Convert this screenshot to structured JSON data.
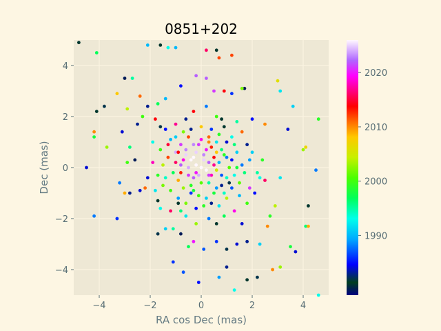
{
  "chart_data": {
    "type": "scatter",
    "title": "0851+202",
    "xlabel": "RA cos Dec (mas)",
    "ylabel": "Dec (mas)",
    "xlim": [
      -5.0,
      5.0
    ],
    "ylim": [
      -5.0,
      5.0
    ],
    "xticks": [
      -4,
      -2,
      0,
      2,
      4
    ],
    "yticks": [
      -4,
      -2,
      0,
      2,
      4
    ],
    "grid": true,
    "colorbar": {
      "label": "",
      "range": [
        1979,
        2026
      ],
      "ticks": [
        1990,
        2000,
        2010,
        2020
      ],
      "colormap": "gist_ncar",
      "stops": [
        {
          "t": 0.0,
          "color": "#000080"
        },
        {
          "t": 0.05,
          "color": "#003f1f"
        },
        {
          "t": 0.12,
          "color": "#0000ff"
        },
        {
          "t": 0.22,
          "color": "#00aaff"
        },
        {
          "t": 0.3,
          "color": "#00ffea"
        },
        {
          "t": 0.38,
          "color": "#00ff5a"
        },
        {
          "t": 0.46,
          "color": "#4cff00"
        },
        {
          "t": 0.54,
          "color": "#c8f000"
        },
        {
          "t": 0.62,
          "color": "#ffc800"
        },
        {
          "t": 0.68,
          "color": "#ff6a00"
        },
        {
          "t": 0.74,
          "color": "#ff0000"
        },
        {
          "t": 0.8,
          "color": "#ff0080"
        },
        {
          "t": 0.86,
          "color": "#ff00ff"
        },
        {
          "t": 0.92,
          "color": "#b066ff"
        },
        {
          "t": 1.0,
          "color": "#fff8ff"
        }
      ]
    },
    "points": [
      {
        "x": -4.8,
        "y": 4.9,
        "year": 1981
      },
      {
        "x": -4.1,
        "y": 4.5,
        "year": 1997
      },
      {
        "x": -3.8,
        "y": 2.4,
        "year": 1982
      },
      {
        "x": -4.1,
        "y": 2.2,
        "year": 1981
      },
      {
        "x": -4.2,
        "y": 1.4,
        "year": 2010
      },
      {
        "x": -4.2,
        "y": 1.2,
        "year": 1998
      },
      {
        "x": -3.7,
        "y": 0.8,
        "year": 2003
      },
      {
        "x": -4.5,
        "y": 0.0,
        "year": 1984
      },
      {
        "x": -4.2,
        "y": -1.9,
        "year": 1988
      },
      {
        "x": -3.3,
        "y": -2.0,
        "year": 1986
      },
      {
        "x": -3.0,
        "y": 3.5,
        "year": 1980
      },
      {
        "x": -2.7,
        "y": 3.5,
        "year": 1995
      },
      {
        "x": -3.3,
        "y": 2.9,
        "year": 2008
      },
      {
        "x": -2.9,
        "y": 2.3,
        "year": 2004
      },
      {
        "x": -2.4,
        "y": 2.8,
        "year": 2011
      },
      {
        "x": -2.1,
        "y": 4.8,
        "year": 1990
      },
      {
        "x": -1.6,
        "y": 4.8,
        "year": 1981
      },
      {
        "x": -1.3,
        "y": 4.7,
        "year": 1993
      },
      {
        "x": -1.0,
        "y": 4.7,
        "year": 1990
      },
      {
        "x": 0.2,
        "y": 4.6,
        "year": 2016
      },
      {
        "x": 0.6,
        "y": 4.6,
        "year": 1981
      },
      {
        "x": 0.7,
        "y": 4.3,
        "year": 2012
      },
      {
        "x": 1.2,
        "y": 4.4,
        "year": 2012
      },
      {
        "x": -3.2,
        "y": -0.6,
        "year": 1988
      },
      {
        "x": -3.0,
        "y": -1.0,
        "year": 2009
      },
      {
        "x": -2.8,
        "y": -1.0,
        "year": 1983
      },
      {
        "x": -2.4,
        "y": -0.9,
        "year": 1984
      },
      {
        "x": -2.2,
        "y": -0.8,
        "year": 2011
      },
      {
        "x": -1.7,
        "y": -2.6,
        "year": 1982
      },
      {
        "x": -1.1,
        "y": -3.7,
        "year": 1986
      },
      {
        "x": -0.7,
        "y": -4.1,
        "year": 1987
      },
      {
        "x": -0.1,
        "y": -4.5,
        "year": 1985
      },
      {
        "x": 0.7,
        "y": -4.3,
        "year": 1989
      },
      {
        "x": 1.0,
        "y": -3.9,
        "year": 1983
      },
      {
        "x": 1.3,
        "y": -4.8,
        "year": 1993
      },
      {
        "x": 1.8,
        "y": -4.4,
        "year": 1981
      },
      {
        "x": 2.2,
        "y": -4.3,
        "year": 1982
      },
      {
        "x": 2.8,
        "y": -4.0,
        "year": 2010
      },
      {
        "x": 3.1,
        "y": -3.9,
        "year": 2003
      },
      {
        "x": 3.5,
        "y": -3.1,
        "year": 1998
      },
      {
        "x": 3.7,
        "y": -3.3,
        "year": 1984
      },
      {
        "x": 4.1,
        "y": -2.3,
        "year": 1996
      },
      {
        "x": 4.2,
        "y": -2.3,
        "year": 2009
      },
      {
        "x": 4.2,
        "y": -1.5,
        "year": 1981
      },
      {
        "x": 4.6,
        "y": -5.0,
        "year": 1993
      },
      {
        "x": 4.5,
        "y": -0.1,
        "year": 1988
      },
      {
        "x": 4.0,
        "y": 0.7,
        "year": 2003
      },
      {
        "x": 4.1,
        "y": 0.8,
        "year": 2007
      },
      {
        "x": 4.6,
        "y": 1.9,
        "year": 1999
      },
      {
        "x": 3.4,
        "y": 1.5,
        "year": 1984
      },
      {
        "x": 3.6,
        "y": 2.4,
        "year": 1991
      },
      {
        "x": 3.0,
        "y": 3.4,
        "year": 2006
      },
      {
        "x": 3.1,
        "y": 3.0,
        "year": 1992
      },
      {
        "x": 2.5,
        "y": 1.7,
        "year": 2010
      },
      {
        "x": 2.0,
        "y": 1.9,
        "year": 1985
      },
      {
        "x": 1.7,
        "y": 3.1,
        "year": 1980
      },
      {
        "x": 1.6,
        "y": 3.1,
        "year": 2002
      },
      {
        "x": 1.2,
        "y": 2.9,
        "year": 1986
      },
      {
        "x": 0.9,
        "y": 3.0,
        "year": 2014
      },
      {
        "x": 0.5,
        "y": 3.0,
        "year": 2021
      },
      {
        "x": 0.2,
        "y": 3.5,
        "year": 2022
      },
      {
        "x": -0.2,
        "y": 3.6,
        "year": 2022
      },
      {
        "x": -0.8,
        "y": 3.2,
        "year": 1985
      },
      {
        "x": -1.4,
        "y": 2.7,
        "year": 1990
      },
      {
        "x": -1.7,
        "y": 2.5,
        "year": 1997
      },
      {
        "x": -2.1,
        "y": 2.4,
        "year": 1983
      },
      {
        "x": -2.3,
        "y": 2.0,
        "year": 2000
      },
      {
        "x": -2.5,
        "y": 1.7,
        "year": 1983
      },
      {
        "x": -3.1,
        "y": 1.4,
        "year": 1984
      },
      {
        "x": -2.8,
        "y": 0.8,
        "year": 1996
      },
      {
        "x": -2.6,
        "y": 0.3,
        "year": 1980
      },
      {
        "x": -2.9,
        "y": 0.2,
        "year": 2000
      },
      {
        "x": -1.7,
        "y": -1.3,
        "year": 1981
      },
      {
        "x": -1.4,
        "y": -2.4,
        "year": 1991
      },
      {
        "x": -1.1,
        "y": -2.4,
        "year": 1995
      },
      {
        "x": -0.8,
        "y": -2.6,
        "year": 1980
      },
      {
        "x": -0.5,
        "y": -3.1,
        "year": 1997
      },
      {
        "x": -0.3,
        "y": -2.9,
        "year": 2020
      },
      {
        "x": 0.1,
        "y": -3.2,
        "year": 1987
      },
      {
        "x": 0.6,
        "y": -2.9,
        "year": 1986
      },
      {
        "x": 1.0,
        "y": -3.2,
        "year": 1982
      },
      {
        "x": 1.4,
        "y": -3.0,
        "year": 1984
      },
      {
        "x": 1.8,
        "y": -2.9,
        "year": 1983
      },
      {
        "x": 2.3,
        "y": -3.0,
        "year": 1991
      },
      {
        "x": 2.6,
        "y": -2.3,
        "year": 2010
      },
      {
        "x": 2.7,
        "y": -1.9,
        "year": 1999
      },
      {
        "x": 2.9,
        "y": -1.5,
        "year": 2004
      },
      {
        "x": 3.1,
        "y": -0.4,
        "year": 1992
      },
      {
        "x": 2.5,
        "y": -0.5,
        "year": 2016
      },
      {
        "x": 2.1,
        "y": -1.0,
        "year": 1985
      },
      {
        "x": 2.3,
        "y": -0.4,
        "year": 1993
      },
      {
        "x": 1.9,
        "y": -0.8,
        "year": 2021
      },
      {
        "x": 2.0,
        "y": 0.6,
        "year": 1991
      },
      {
        "x": 2.4,
        "y": 0.3,
        "year": 1999
      },
      {
        "x": 1.8,
        "y": 0.9,
        "year": 1983
      },
      {
        "x": 1.6,
        "y": 1.4,
        "year": 2011
      },
      {
        "x": 1.4,
        "y": 1.8,
        "year": 1995
      },
      {
        "x": -1.8,
        "y": 1.9,
        "year": 2014
      },
      {
        "x": -1.6,
        "y": 1.6,
        "year": 1982
      },
      {
        "x": -1.4,
        "y": 1.5,
        "year": 1985
      },
      {
        "x": -1.9,
        "y": 1.0,
        "year": 1993
      },
      {
        "x": -1.6,
        "y": 0.7,
        "year": 2000
      },
      {
        "x": -1.9,
        "y": 0.2,
        "year": 2018
      },
      {
        "x": -1.7,
        "y": -0.3,
        "year": 1999
      },
      {
        "x": -2.1,
        "y": -0.4,
        "year": 1984
      },
      {
        "x": -1.5,
        "y": -0.7,
        "year": 2002
      },
      {
        "x": -1.6,
        "y": -1.6,
        "year": 1993
      },
      {
        "x": -1.2,
        "y": -1.7,
        "year": 2016
      },
      {
        "x": -0.9,
        "y": -1.4,
        "year": 1981
      },
      {
        "x": -0.6,
        "y": -1.9,
        "year": 1992
      },
      {
        "x": -0.2,
        "y": -2.2,
        "year": 2003
      },
      {
        "x": 0.3,
        "y": -2.0,
        "year": 1988
      },
      {
        "x": 0.6,
        "y": -2.2,
        "year": 1981
      },
      {
        "x": 0.9,
        "y": -1.9,
        "year": 1997
      },
      {
        "x": 1.3,
        "y": -1.7,
        "year": 2019
      },
      {
        "x": 1.6,
        "y": -2.2,
        "year": 1984
      },
      {
        "x": 1.8,
        "y": -1.4,
        "year": 2000
      },
      {
        "x": 1.5,
        "y": -1.1,
        "year": 1990
      },
      {
        "x": 1.2,
        "y": 1.2,
        "year": 1993
      },
      {
        "x": 0.9,
        "y": 1.6,
        "year": 1981
      },
      {
        "x": 0.6,
        "y": 2.0,
        "year": 2000
      },
      {
        "x": 0.2,
        "y": 2.4,
        "year": 1988
      },
      {
        "x": -0.3,
        "y": 2.2,
        "year": 2014
      },
      {
        "x": -0.6,
        "y": 1.9,
        "year": 1983
      },
      {
        "x": -1.0,
        "y": 1.7,
        "year": 2017
      },
      {
        "x": -1.2,
        "y": 1.1,
        "year": 1990
      },
      {
        "x": -1.0,
        "y": 0.6,
        "year": 2024
      },
      {
        "x": -0.8,
        "y": 0.9,
        "year": 2021
      },
      {
        "x": -0.5,
        "y": 1.2,
        "year": 2012
      },
      {
        "x": -0.3,
        "y": 0.9,
        "year": 2023
      },
      {
        "x": 0.0,
        "y": 1.1,
        "year": 2019
      },
      {
        "x": 0.3,
        "y": 1.2,
        "year": 2011
      },
      {
        "x": 0.6,
        "y": 1.0,
        "year": 1992
      },
      {
        "x": 0.8,
        "y": 0.7,
        "year": 1996
      },
      {
        "x": 1.0,
        "y": 0.4,
        "year": 1988
      },
      {
        "x": 1.1,
        "y": 0.0,
        "year": 2001
      },
      {
        "x": 1.0,
        "y": -0.4,
        "year": 1994
      },
      {
        "x": 0.8,
        "y": -0.7,
        "year": 1983
      },
      {
        "x": 0.5,
        "y": -1.0,
        "year": 1998
      },
      {
        "x": 0.2,
        "y": -1.2,
        "year": 1991
      },
      {
        "x": -0.1,
        "y": -1.1,
        "year": 2000
      },
      {
        "x": -0.4,
        "y": -1.0,
        "year": 1986
      },
      {
        "x": -0.7,
        "y": -0.8,
        "year": 2003
      },
      {
        "x": -0.9,
        "y": -0.5,
        "year": 2009
      },
      {
        "x": -1.1,
        "y": -0.2,
        "year": 1997
      },
      {
        "x": -1.0,
        "y": 0.2,
        "year": 2016
      },
      {
        "x": -0.6,
        "y": 0.5,
        "year": 2025
      },
      {
        "x": -0.4,
        "y": 0.3,
        "year": 2026
      },
      {
        "x": -0.2,
        "y": 0.1,
        "year": 2026
      },
      {
        "x": 0.0,
        "y": 0.0,
        "year": 2026
      },
      {
        "x": 0.1,
        "y": 0.3,
        "year": 2025
      },
      {
        "x": 0.2,
        "y": -0.1,
        "year": 2026
      },
      {
        "x": -0.1,
        "y": -0.3,
        "year": 2024
      },
      {
        "x": 0.3,
        "y": 0.2,
        "year": 2022
      },
      {
        "x": 0.4,
        "y": -0.3,
        "year": 2018
      },
      {
        "x": -0.3,
        "y": -0.4,
        "year": 2022
      },
      {
        "x": -0.5,
        "y": 0.0,
        "year": 2024
      },
      {
        "x": 0.5,
        "y": 0.4,
        "year": 2014
      },
      {
        "x": 0.6,
        "y": -0.1,
        "year": 2005
      },
      {
        "x": -0.7,
        "y": 0.3,
        "year": 2019
      },
      {
        "x": -0.8,
        "y": -0.2,
        "year": 2013
      },
      {
        "x": 0.2,
        "y": 0.7,
        "year": 2020
      },
      {
        "x": -0.2,
        "y": 0.6,
        "year": 2025
      },
      {
        "x": 0.0,
        "y": -0.6,
        "year": 2001
      },
      {
        "x": 0.3,
        "y": -0.6,
        "year": 1995
      },
      {
        "x": -0.4,
        "y": -0.7,
        "year": 1999
      },
      {
        "x": 0.7,
        "y": 0.2,
        "year": 1990
      },
      {
        "x": 0.8,
        "y": -0.3,
        "year": 1987
      },
      {
        "x": 0.9,
        "y": 0.5,
        "year": 1999
      },
      {
        "x": 1.2,
        "y": 0.3,
        "year": 1985
      },
      {
        "x": 1.3,
        "y": -0.3,
        "year": 1993
      },
      {
        "x": 1.4,
        "y": 0.6,
        "year": 1991
      },
      {
        "x": 1.5,
        "y": -0.6,
        "year": 2001
      },
      {
        "x": 1.6,
        "y": 0.1,
        "year": 1988
      },
      {
        "x": 1.7,
        "y": -0.2,
        "year": 1996
      },
      {
        "x": -1.3,
        "y": 0.4,
        "year": 2012
      },
      {
        "x": -1.4,
        "y": -0.4,
        "year": 1994
      },
      {
        "x": -1.2,
        "y": -0.9,
        "year": 2000
      },
      {
        "x": -0.9,
        "y": -1.2,
        "year": 1989
      },
      {
        "x": -0.6,
        "y": -1.4,
        "year": 2002
      },
      {
        "x": -0.2,
        "y": -1.6,
        "year": 1985
      },
      {
        "x": 0.1,
        "y": -1.5,
        "year": 1999
      },
      {
        "x": 0.4,
        "y": -1.4,
        "year": 1983
      },
      {
        "x": 0.7,
        "y": -1.5,
        "year": 1992
      },
      {
        "x": 1.0,
        "y": -1.2,
        "year": 2004
      },
      {
        "x": 1.2,
        "y": -0.8,
        "year": 1987
      },
      {
        "x": 1.3,
        "y": 0.9,
        "year": 1996
      },
      {
        "x": 1.0,
        "y": 1.0,
        "year": 1984
      },
      {
        "x": 0.7,
        "y": 1.3,
        "year": 1999
      },
      {
        "x": 0.4,
        "y": 1.5,
        "year": 1986
      },
      {
        "x": 0.0,
        "y": 1.6,
        "year": 2008
      },
      {
        "x": -0.4,
        "y": 1.5,
        "year": 1983
      },
      {
        "x": -0.7,
        "y": 1.4,
        "year": 2002
      },
      {
        "x": -1.0,
        "y": 1.2,
        "year": 1991
      },
      {
        "x": -1.3,
        "y": 0.9,
        "year": 2015
      },
      {
        "x": -0.5,
        "y": -0.3,
        "year": 2021
      },
      {
        "x": 0.1,
        "y": 0.5,
        "year": 2023
      },
      {
        "x": -0.3,
        "y": 0.4,
        "year": 2026
      },
      {
        "x": 0.3,
        "y": -0.3,
        "year": 2021
      },
      {
        "x": -0.2,
        "y": -0.2,
        "year": 2020
      },
      {
        "x": 0.5,
        "y": 0.1,
        "year": 2017
      },
      {
        "x": -0.6,
        "y": 0.7,
        "year": 2023
      },
      {
        "x": 0.4,
        "y": 0.8,
        "year": 2013
      },
      {
        "x": -0.8,
        "y": 0.1,
        "year": 2022
      },
      {
        "x": 0.6,
        "y": 0.6,
        "year": 2008
      },
      {
        "x": 0.9,
        "y": -1.0,
        "year": 1994
      },
      {
        "x": -0.3,
        "y": -0.9,
        "year": 1998
      },
      {
        "x": 0.6,
        "y": -0.8,
        "year": 1989
      },
      {
        "x": 1.1,
        "y": -0.6,
        "year": 1982
      },
      {
        "x": 0.3,
        "y": 1.0,
        "year": 2010
      },
      {
        "x": -0.1,
        "y": 0.9,
        "year": 2021
      },
      {
        "x": -0.9,
        "y": 0.6,
        "year": 2014
      },
      {
        "x": 1.4,
        "y": 0.0,
        "year": 1998
      },
      {
        "x": -1.5,
        "y": 0.1,
        "year": 2004
      },
      {
        "x": 1.9,
        "y": 0.3,
        "year": 1989
      },
      {
        "x": -1.8,
        "y": -0.9,
        "year": 1992
      },
      {
        "x": 2.2,
        "y": -0.2,
        "year": 1995
      },
      {
        "x": 0.8,
        "y": 1.9,
        "year": 1981
      },
      {
        "x": -0.8,
        "y": -1.7,
        "year": 1996
      }
    ]
  }
}
